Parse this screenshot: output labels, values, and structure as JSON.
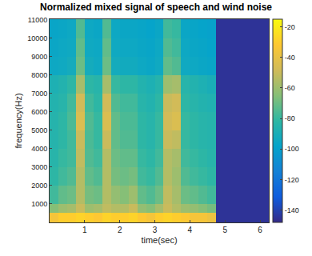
{
  "chart_data": {
    "type": "heatmap",
    "title": "Normalized mixed signal of speech and wind noise",
    "x_label": "time(sec)",
    "y_label": "frequency(Hz)",
    "x_bins": [
      0,
      0.25,
      0.5,
      0.75,
      1,
      1.25,
      1.5,
      1.75,
      2,
      2.25,
      2.5,
      2.75,
      3,
      3.25,
      3.5,
      3.75,
      4,
      4.25,
      4.5,
      4.75,
      6.25
    ],
    "y_bins": [
      0,
      500,
      1000,
      2000,
      3000,
      4000,
      5000,
      6000,
      7000,
      8000,
      9000,
      10000,
      11025
    ],
    "cells": [
      [
        -35,
        -30,
        -30,
        -28,
        -30,
        -32,
        -28,
        -30,
        -30,
        -28,
        -32,
        -35,
        -30,
        -28,
        -30,
        -32,
        -35,
        -35,
        -38,
        -145
      ],
      [
        -65,
        -60,
        -58,
        -50,
        -60,
        -58,
        -52,
        -55,
        -55,
        -50,
        -62,
        -65,
        -58,
        -50,
        -55,
        -60,
        -62,
        -65,
        -68,
        -145
      ],
      [
        -78,
        -72,
        -70,
        -55,
        -68,
        -70,
        -55,
        -62,
        -65,
        -60,
        -72,
        -75,
        -70,
        -52,
        -58,
        -70,
        -72,
        -75,
        -78,
        -145
      ],
      [
        -82,
        -78,
        -75,
        -55,
        -72,
        -75,
        -55,
        -68,
        -70,
        -68,
        -78,
        -80,
        -75,
        -55,
        -60,
        -75,
        -78,
        -80,
        -82,
        -145
      ],
      [
        -84,
        -80,
        -78,
        -52,
        -75,
        -78,
        -55,
        -70,
        -72,
        -72,
        -80,
        -82,
        -78,
        -55,
        -58,
        -78,
        -80,
        -82,
        -84,
        -145
      ],
      [
        -85,
        -82,
        -78,
        -50,
        -76,
        -80,
        -50,
        -72,
        -75,
        -75,
        -82,
        -84,
        -80,
        -50,
        -52,
        -80,
        -82,
        -84,
        -85,
        -145
      ],
      [
        -85,
        -82,
        -76,
        -45,
        -75,
        -80,
        -45,
        -72,
        -76,
        -76,
        -82,
        -84,
        -80,
        -48,
        -45,
        -80,
        -82,
        -84,
        -85,
        -145
      ],
      [
        -86,
        -84,
        -78,
        -48,
        -78,
        -82,
        -48,
        -75,
        -78,
        -78,
        -84,
        -86,
        -82,
        -50,
        -48,
        -82,
        -84,
        -86,
        -87,
        -145
      ],
      [
        -88,
        -86,
        -82,
        -58,
        -82,
        -84,
        -58,
        -80,
        -82,
        -82,
        -86,
        -88,
        -85,
        -60,
        -58,
        -84,
        -86,
        -88,
        -90,
        -145
      ],
      [
        -95,
        -94,
        -92,
        -70,
        -92,
        -94,
        -70,
        -92,
        -93,
        -93,
        -95,
        -96,
        -94,
        -72,
        -75,
        -94,
        -95,
        -96,
        -97,
        -145
      ],
      [
        -96,
        -95,
        -94,
        -72,
        -94,
        -95,
        -72,
        -94,
        -95,
        -95,
        -96,
        -97,
        -95,
        -75,
        -78,
        -95,
        -96,
        -97,
        -98,
        -145
      ],
      [
        -97,
        -96,
        -95,
        -75,
        -95,
        -96,
        -75,
        -95,
        -96,
        -96,
        -97,
        -98,
        -96,
        -78,
        -80,
        -96,
        -97,
        -98,
        -99,
        -145
      ]
    ],
    "xlim": [
      0,
      6.25
    ],
    "xticks": [
      1,
      2,
      3,
      4,
      5,
      6
    ],
    "ylim": [
      0,
      11025
    ],
    "yticks": [
      1000,
      2000,
      3000,
      4000,
      5000,
      6000,
      7000,
      8000,
      9000,
      10000,
      11000
    ],
    "colorbar_range": [
      -148,
      -15
    ],
    "colorbar_ticks": [
      -140,
      -120,
      -100,
      -80,
      -60,
      -40,
      -20
    ]
  }
}
